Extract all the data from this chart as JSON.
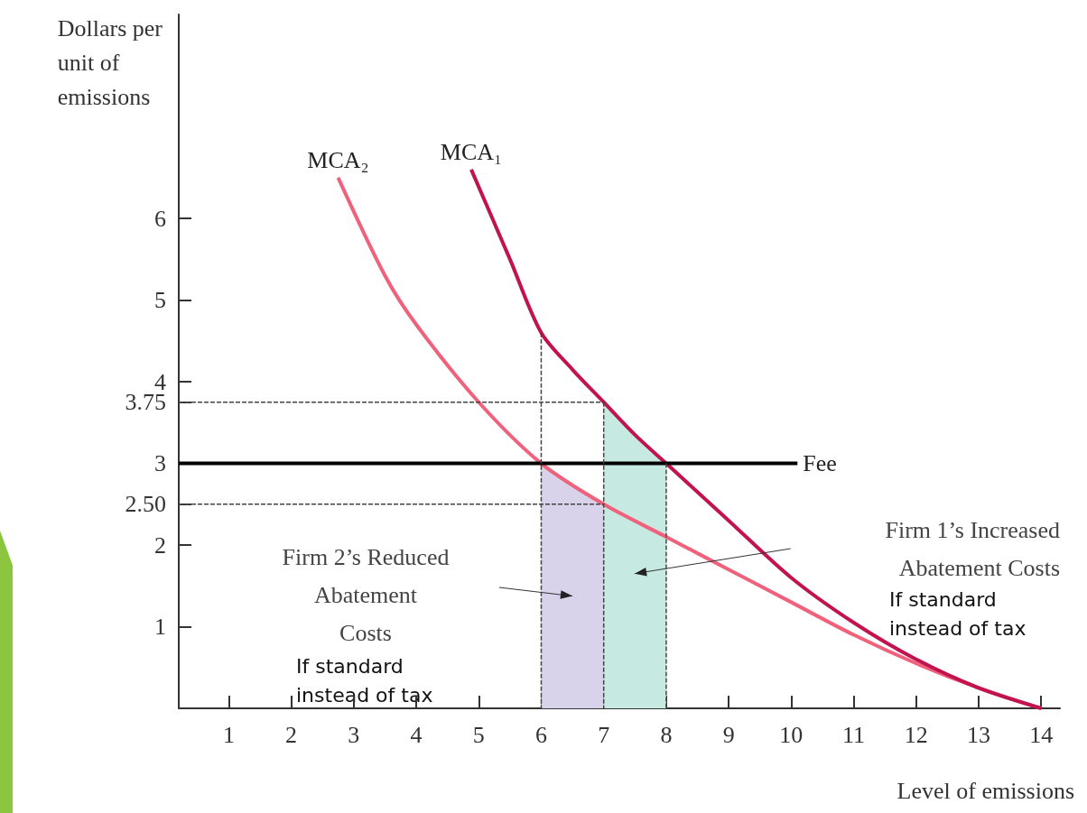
{
  "chart_data": {
    "type": "line",
    "xlabel": "Level of emissions",
    "ylabel": "Dollars per\nunit of\nemissions",
    "xlim": [
      0.2,
      14.3
    ],
    "ylim": [
      0,
      8.5
    ],
    "xticks": [
      1,
      2,
      3,
      4,
      5,
      6,
      7,
      8,
      9,
      10,
      11,
      12,
      13,
      14
    ],
    "yticks": [
      1,
      2,
      {
        "value": 2.5,
        "label": "2.50"
      },
      3,
      3.75,
      4,
      5,
      6
    ],
    "grid": false,
    "legend": false,
    "marker": "none",
    "series": [
      {
        "type": "area",
        "color": "#d8d2ea",
        "x": [
          6,
          6.5,
          7
        ],
        "values": [
          3,
          2.73,
          2.5
        ]
      },
      {
        "type": "area",
        "color": "#c6e9e1",
        "x": [
          7,
          7.5,
          8
        ],
        "values": [
          3.75,
          3.35,
          3
        ]
      },
      {
        "line_style": "dashed",
        "color": "#444444",
        "x": [
          6,
          6
        ],
        "values": [
          4.6,
          0
        ]
      },
      {
        "line_style": "dashed",
        "color": "#444444",
        "x": [
          7,
          7
        ],
        "values": [
          3.75,
          0
        ]
      },
      {
        "line_style": "dashed",
        "color": "#444444",
        "x": [
          8,
          8
        ],
        "values": [
          3,
          0
        ]
      },
      {
        "line_style": "dashed",
        "color": "#444444",
        "x": [
          0.2,
          7
        ],
        "values": [
          3.75,
          3.75
        ]
      },
      {
        "line_style": "dashed",
        "color": "#444444",
        "x": [
          0.2,
          7
        ],
        "values": [
          2.5,
          2.5
        ]
      },
      {
        "name": "MCA₂",
        "color": "#f0627c",
        "x": [
          2.75,
          3.5,
          4,
          5,
          6,
          7,
          8,
          9,
          10,
          11,
          12,
          13,
          14
        ],
        "values": [
          6.5,
          5.3,
          4.7,
          3.75,
          3,
          2.5,
          2.1,
          1.7,
          1.3,
          0.9,
          0.55,
          0.25,
          0
        ]
      },
      {
        "name": "MCA₁",
        "color": "#c2134f",
        "x": [
          4.88,
          5.5,
          6,
          6.5,
          7,
          7.5,
          8,
          9,
          10,
          11,
          12,
          13,
          14
        ],
        "values": [
          6.6,
          5.5,
          4.6,
          4.15,
          3.75,
          3.35,
          3,
          2.3,
          1.6,
          1.05,
          0.6,
          0.25,
          0
        ]
      },
      {
        "name": "Fee",
        "color": "#000000",
        "x": [
          0.2,
          10.1
        ],
        "values": [
          3,
          3
        ]
      }
    ],
    "annotations": [
      "Firm 2’s Reduced\nAbatement\nCosts",
      "If standard\ninstead of tax",
      "Firm 1’s Increased\nAbatement Costs",
      "If standard\ninstead of tax"
    ]
  }
}
